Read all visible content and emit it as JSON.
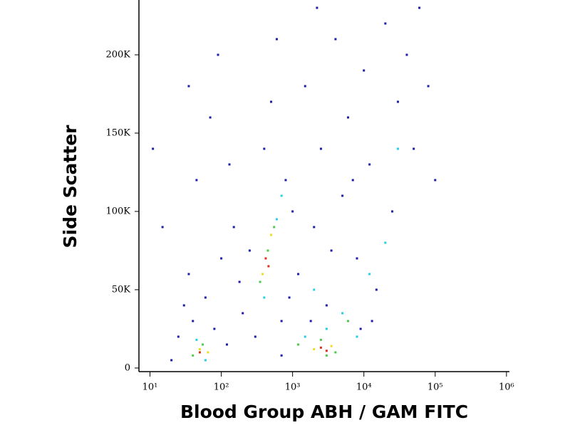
{
  "chart_data": {
    "type": "scatter",
    "x_label": "Blood Group ABH / GAM FITC",
    "y_label": "Side Scatter",
    "xscale": "log",
    "xlim": [
      7,
      1100000
    ],
    "xticks": [
      {
        "value": 10,
        "label": "10¹"
      },
      {
        "value": 100,
        "label": "10²"
      },
      {
        "value": 1000,
        "label": "10³"
      },
      {
        "value": 10000,
        "label": "10⁴"
      },
      {
        "value": 100000,
        "label": "10⁵"
      },
      {
        "value": 1000000,
        "label": "10⁶"
      }
    ],
    "ylim": [
      -2300,
      235000
    ],
    "yticks": [
      0,
      {
        "value": 50000,
        "label": "50K"
      },
      {
        "value": 100000,
        "label": "100K"
      },
      {
        "value": 150000,
        "label": "150K"
      },
      {
        "value": 200000,
        "label": "200K"
      }
    ],
    "series": [
      {
        "color": "#1c1ca6",
        "x": [
          20,
          25,
          30,
          35,
          40,
          60,
          80,
          100,
          120,
          150,
          200,
          45,
          70,
          90,
          130,
          180,
          250,
          300,
          400,
          500,
          700,
          800,
          1000,
          1200,
          1500,
          2000,
          2500,
          3000,
          4000,
          5000,
          6000,
          8000,
          10000,
          12000,
          15000,
          20000,
          25000,
          30000,
          40000,
          50000,
          60000,
          80000,
          3500,
          1800,
          700,
          9000,
          15,
          35,
          600,
          11,
          2200,
          100000,
          7000,
          900,
          13000
        ],
        "values": [
          5000,
          20000,
          40000,
          60000,
          30000,
          45000,
          25000,
          70000,
          15000,
          90000,
          35000,
          120000,
          160000,
          200000,
          130000,
          55000,
          75000,
          20000,
          140000,
          170000,
          30000,
          120000,
          100000,
          60000,
          180000,
          90000,
          140000,
          40000,
          210000,
          110000,
          160000,
          70000,
          190000,
          130000,
          50000,
          220000,
          100000,
          170000,
          200000,
          140000,
          230000,
          180000,
          75000,
          30000,
          8000,
          25000,
          90000,
          180000,
          210000,
          140000,
          230000,
          120000,
          120000,
          45000,
          30000
        ]
      },
      {
        "color": "#22cfe6",
        "x": [
          45,
          60,
          400,
          600,
          1500,
          3000,
          5000,
          8000,
          20000,
          30000,
          700,
          2000,
          12000
        ],
        "values": [
          18000,
          5000,
          45000,
          95000,
          20000,
          25000,
          35000,
          20000,
          80000,
          140000,
          110000,
          50000,
          60000
        ]
      },
      {
        "color": "#4cc94a",
        "x": [
          40,
          55,
          350,
          450,
          550,
          1200,
          2500,
          4000,
          6000,
          3000
        ],
        "values": [
          8000,
          15000,
          55000,
          75000,
          90000,
          15000,
          18000,
          10000,
          30000,
          8000
        ]
      },
      {
        "color": "#f0dc1e",
        "x": [
          50,
          65,
          380,
          500,
          2000,
          3500
        ],
        "values": [
          12000,
          10000,
          60000,
          85000,
          12000,
          14000
        ]
      },
      {
        "color": "#e0301a",
        "x": [
          50,
          420,
          460,
          2500,
          3000
        ],
        "values": [
          10000,
          70000,
          65000,
          13000,
          11000
        ]
      }
    ]
  }
}
